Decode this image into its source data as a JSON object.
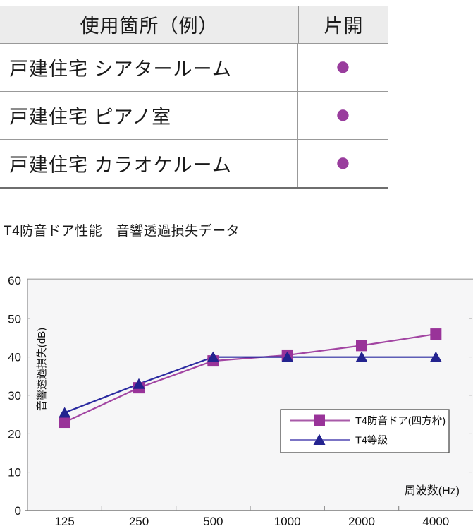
{
  "table": {
    "header": {
      "usage": "使用箇所（例）",
      "single_swing": "片開"
    },
    "rows": [
      {
        "label": "戸建住宅 シアタールーム",
        "mark": "●"
      },
      {
        "label": "戸建住宅 ピアノ室",
        "mark": "●"
      },
      {
        "label": "戸建住宅 カラオケルーム",
        "mark": "●"
      }
    ],
    "dot_color": "#993d9d"
  },
  "section_title": "T4防音ドア性能　音響透過損失データ",
  "chart_data": {
    "type": "line",
    "title": "T4防音ドア性能　音響透過損失データ",
    "categories": [
      "125",
      "250",
      "500",
      "1000",
      "2000",
      "4000"
    ],
    "series": [
      {
        "name": "T4防音ドア(四方枠)",
        "marker": "square",
        "values": [
          23,
          32,
          39,
          40.5,
          43,
          46
        ],
        "line_color": "#a245a2",
        "marker_color": "#993399",
        "legend_line_color": "#a85aa8"
      },
      {
        "name": "T4等級",
        "marker": "triangle",
        "values": [
          25.5,
          33,
          40,
          40,
          40,
          40
        ],
        "line_color": "#2a2aa0",
        "marker_color": "#23238f",
        "legend_line_color": "#7b74c5"
      }
    ],
    "xlabel": "周波数(Hz)",
    "ylabel": "音響透過損失(dB)",
    "ylim": [
      0,
      60
    ],
    "ytick_step": 10,
    "grid": false,
    "legend_position": "bottom-right",
    "plot_bg": "#f6f6f7",
    "top_border_color": "#b4b4b4",
    "axis_color": "#8a8a8a",
    "text_color": "#111111"
  }
}
